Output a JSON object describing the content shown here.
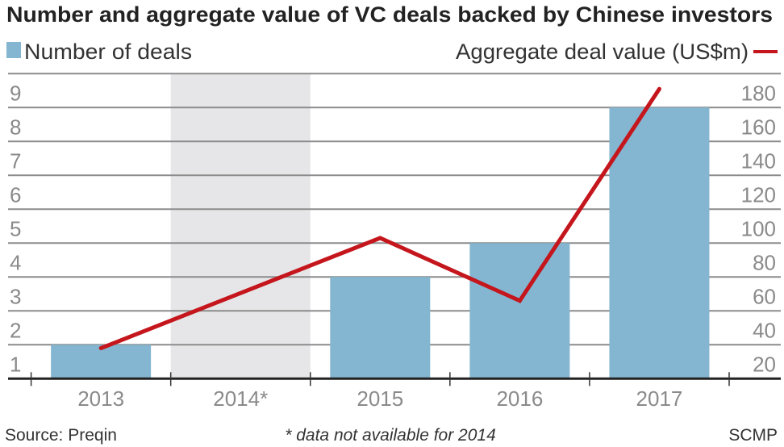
{
  "chart_data": {
    "type": "bar+line",
    "title": "Number and aggregate value of VC deals backed by Chinese investors",
    "categories": [
      "2013",
      "2014*",
      "2015",
      "2016",
      "2017"
    ],
    "series": [
      {
        "name": "Number of deals",
        "type": "bar",
        "axis": "left",
        "values": [
          1,
          null,
          3,
          4,
          8
        ],
        "color": "#84b6d1"
      },
      {
        "name": "Aggregate deal value (US$m)",
        "type": "line",
        "axis": "right",
        "values": [
          18,
          null,
          83,
          46,
          171
        ],
        "color": "#c4161c"
      }
    ],
    "left_axis": {
      "ylim": [
        0,
        9
      ],
      "ticks": [
        "1",
        "2",
        "3",
        "4",
        "5",
        "6",
        "7",
        "8",
        "9"
      ]
    },
    "right_axis": {
      "ylim": [
        0,
        180
      ],
      "ticks": [
        "20",
        "40",
        "60",
        "80",
        "100",
        "120",
        "140",
        "160",
        "180"
      ]
    },
    "shaded_category": "2014*",
    "shade_color": "#e6e6e8",
    "grid": true,
    "legend_placement": "top"
  },
  "footer": {
    "source": "Source: Preqin",
    "note": "* data not available for 2014",
    "credit": "SCMP"
  }
}
